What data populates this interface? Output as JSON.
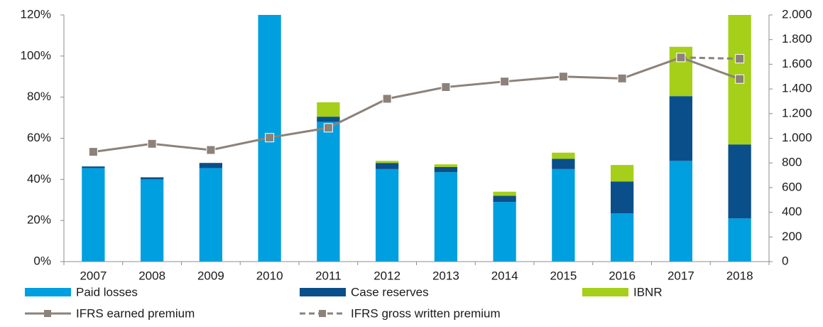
{
  "chart_data": {
    "type": "bar",
    "categories": [
      "2007",
      "2008",
      "2009",
      "2010",
      "2011",
      "2012",
      "2013",
      "2014",
      "2015",
      "2016",
      "2017",
      "2018"
    ],
    "stacked": true,
    "series": [
      {
        "name": "Paid losses",
        "color": "#009fdf",
        "values": [
          45.5,
          40,
          45.5,
          120,
          68,
          45,
          43.5,
          29,
          45,
          23.5,
          49,
          21
        ]
      },
      {
        "name": "Case reserves",
        "color": "#0b4f8a",
        "values": [
          0.8,
          1,
          2.5,
          0,
          2.5,
          3,
          2.5,
          3,
          5,
          15.5,
          31.5,
          36
        ]
      },
      {
        "name": "IBNR",
        "color": "#a5cf19",
        "values": [
          0,
          0,
          0,
          0,
          7,
          1,
          1.3,
          2,
          3,
          8,
          24,
          63
        ]
      },
      {
        "name": "IFRS earned premium",
        "type": "line",
        "axis": "y2",
        "color": "#8c8279",
        "dashed": false,
        "values": [
          890,
          955,
          905,
          1005,
          1085,
          1320,
          1415,
          1460,
          1500,
          1485,
          1655,
          1480
        ]
      },
      {
        "name": "IFRS gross written premium",
        "type": "line",
        "axis": "y2",
        "color": "#8c8279",
        "dashed": true,
        "values": [
          null,
          null,
          null,
          null,
          null,
          null,
          null,
          null,
          null,
          null,
          1655,
          1645
        ]
      }
    ],
    "ylim": [
      0,
      120
    ],
    "yticks": [
      {
        "value": 0,
        "label": "0%"
      },
      {
        "value": 20,
        "label": "20%"
      },
      {
        "value": 40,
        "label": "40%"
      },
      {
        "value": 60,
        "label": "60%"
      },
      {
        "value": 80,
        "label": "80%"
      },
      {
        "value": 100,
        "label": "100%"
      },
      {
        "value": 120,
        "label": "120%"
      }
    ],
    "y2lim": [
      0,
      2000
    ],
    "y2ticks": [
      0,
      200,
      400,
      600,
      800,
      {
        "value": 1000,
        "label": "1.000"
      },
      {
        "value": 1200,
        "label": "1.200"
      },
      {
        "value": 1400,
        "label": "1.400"
      },
      {
        "value": 1600,
        "label": "1.600"
      },
      {
        "value": 1800,
        "label": "1.800"
      },
      {
        "value": 2000,
        "label": "2.000"
      }
    ],
    "grid": false
  }
}
